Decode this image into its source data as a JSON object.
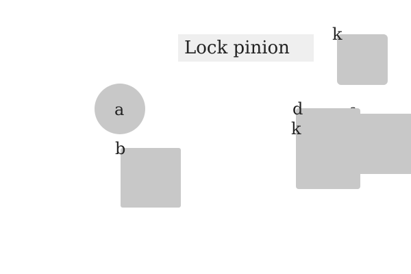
{
  "title": "Lock pinion",
  "colors": {
    "background": "#ffffff",
    "shape_fill": "#c8c8c8",
    "title_box_fill": "#efefef",
    "text": "#222222"
  },
  "labels": {
    "a": "a",
    "b": "b",
    "d": "d",
    "k_top": "k",
    "k_mid": "k",
    "f": "f"
  }
}
